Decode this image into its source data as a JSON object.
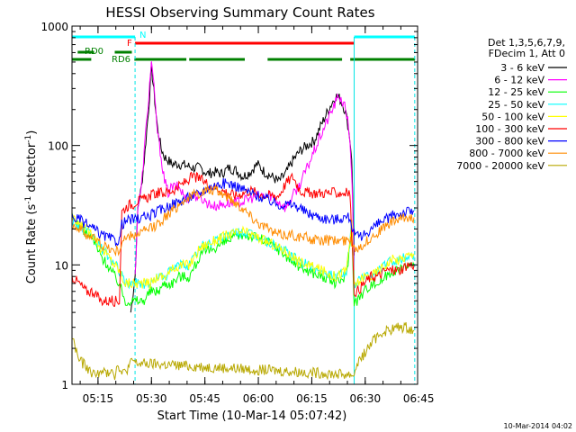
{
  "chart_data": {
    "type": "line",
    "title": "HESSI Observing Summary Count Rates",
    "xlabel": "Start Time (10-Mar-14 05:07:42)",
    "ylabel_main": "Count Rate (s",
    "ylabel_sup1": "-1",
    "ylabel_mid": " detector",
    "ylabel_sup2": "-1",
    "ylabel_end": ")",
    "yscale": "log",
    "ylim": [
      1,
      1000
    ],
    "xlim_minutes": [
      0,
      97
    ],
    "x_ticks": [
      {
        "label": "05:15",
        "minute": 7.3
      },
      {
        "label": "05:30",
        "minute": 22.3
      },
      {
        "label": "05:45",
        "minute": 37.3
      },
      {
        "label": "06:00",
        "minute": 52.3
      },
      {
        "label": "06:15",
        "minute": 67.3
      },
      {
        "label": "06:30",
        "minute": 82.3
      },
      {
        "label": "06:45",
        "minute": 97.3
      }
    ],
    "y_ticks": [
      {
        "label": "1",
        "value": 1
      },
      {
        "label": "10",
        "value": 10
      },
      {
        "label": "100",
        "value": 100
      },
      {
        "label": "1000",
        "value": 1000
      }
    ],
    "legend_header": [
      "Det 1,3,5,6,7,9,",
      "FDecim 1, Att 0"
    ],
    "legend_placement": "right",
    "timestamp": "10-Mar-2014 04:02",
    "night_lines_minutes": [
      17.7,
      79.2,
      96.2
    ],
    "flags": [
      {
        "label": "N",
        "color": "#00ffff",
        "segments": [
          [
            0,
            17.7
          ],
          [
            79.2,
            96.2
          ]
        ]
      },
      {
        "label": "F",
        "color": "#ff0000",
        "segments": [
          [
            17.7,
            79.2
          ]
        ]
      },
      {
        "label": "RD0",
        "color": "#008000",
        "segments": [
          [
            1.6,
            6.2
          ],
          [
            12.0,
            16.8
          ]
        ]
      },
      {
        "label": "RD6",
        "color": "#008000",
        "segments": [
          [
            0,
            5.4
          ],
          [
            17.5,
            32.1
          ],
          [
            32.9,
            48.5
          ],
          [
            54.9,
            75.8
          ],
          [
            78.1,
            96.3
          ]
        ]
      }
    ],
    "series": [
      {
        "name": "3 - 6 keV",
        "color": "#000000",
        "x": [
          16.5,
          17.7,
          18.5,
          19.5,
          20.5,
          21.5,
          22.3,
          23,
          24,
          25,
          26,
          27,
          28,
          30,
          32,
          34,
          36,
          38,
          40,
          42,
          44,
          46,
          48,
          50,
          52,
          54,
          56,
          58,
          60,
          62,
          64,
          66,
          68,
          70,
          72,
          74,
          75,
          76,
          76.8,
          77.4,
          77.9,
          78.5,
          79.2
        ],
        "y": [
          4,
          8,
          30,
          45,
          90,
          200,
          450,
          280,
          140,
          95,
          80,
          75,
          70,
          70,
          68,
          65,
          65,
          58,
          60,
          58,
          65,
          62,
          55,
          60,
          70,
          60,
          55,
          50,
          58,
          75,
          90,
          100,
          110,
          150,
          200,
          260,
          250,
          220,
          190,
          150,
          120,
          80,
          12
        ]
      },
      {
        "name": "6 - 12 keV",
        "color": "#ff00ff",
        "x": [
          17.7,
          18.5,
          19.5,
          20.5,
          21.5,
          22.3,
          23,
          24,
          25,
          26,
          27,
          28,
          30,
          32,
          34,
          36,
          38,
          40,
          44,
          48,
          52,
          56,
          60,
          62,
          64,
          66,
          68,
          70,
          72,
          74,
          75,
          76,
          76.8,
          77.4,
          78,
          78.6,
          79.2
        ],
        "y": [
          8,
          30,
          45,
          110,
          250,
          520,
          300,
          130,
          80,
          50,
          40,
          45,
          45,
          36,
          38,
          37,
          33,
          31,
          33,
          34,
          38,
          38,
          30,
          38,
          48,
          65,
          90,
          125,
          170,
          230,
          260,
          230,
          200,
          160,
          110,
          50,
          9
        ]
      },
      {
        "name": "12 - 25 keV",
        "color": "#00ff00",
        "x": [
          0,
          3,
          6,
          8,
          10,
          12,
          13.3,
          14,
          15,
          16,
          17,
          18,
          20,
          22,
          24,
          26,
          28,
          30,
          33,
          36,
          40,
          44,
          48,
          52,
          56,
          60,
          63,
          66,
          70,
          74,
          77,
          78.5,
          79.2,
          80,
          82,
          84,
          86,
          88,
          90,
          92,
          94,
          96
        ],
        "y": [
          25,
          20,
          16,
          12,
          10,
          8,
          7,
          6,
          5,
          5,
          5,
          5,
          5,
          6,
          6,
          7,
          7,
          8,
          8,
          12,
          14,
          16,
          18,
          17,
          15,
          12,
          10,
          9,
          8,
          7,
          8,
          20,
          5,
          5,
          6,
          7,
          7,
          8,
          9,
          9,
          10,
          10
        ]
      },
      {
        "name": "25 - 50 keV",
        "color": "#00ffff",
        "x": [
          0,
          3,
          6,
          8,
          10,
          12,
          13.3,
          14,
          15,
          16,
          17,
          18,
          20,
          22,
          24,
          26,
          28,
          30,
          33,
          36,
          40,
          44,
          48,
          52,
          56,
          60,
          63,
          66,
          70,
          74,
          77,
          78.5,
          79.2,
          80,
          82,
          84,
          86,
          88,
          90,
          92,
          94,
          96
        ],
        "y": [
          24,
          20,
          17,
          14,
          12,
          10,
          9,
          8,
          7,
          7,
          7,
          7,
          7,
          7,
          8,
          8,
          9,
          10,
          10,
          14,
          16,
          18,
          19,
          17,
          15,
          13,
          11,
          10,
          9,
          8,
          9,
          22,
          7,
          7,
          8,
          8,
          9,
          10,
          11,
          11,
          12,
          12
        ]
      },
      {
        "name": "50 - 100 keV",
        "color": "#ffff00",
        "x": [
          0,
          3,
          6,
          8,
          10,
          12,
          13.3,
          14,
          15,
          16,
          17,
          18,
          20,
          22,
          24,
          26,
          28,
          30,
          33,
          36,
          40,
          44,
          48,
          52,
          56,
          60,
          63,
          66,
          70,
          74,
          77,
          78.5,
          79.2,
          80,
          82,
          84,
          86,
          88,
          90,
          92,
          94,
          96
        ],
        "y": [
          24,
          21,
          18,
          14,
          12,
          10,
          9,
          8,
          7,
          7,
          7,
          7,
          7,
          7,
          8,
          8,
          9,
          10,
          10,
          14,
          16,
          18,
          19,
          17,
          15,
          13,
          11,
          10,
          9,
          8,
          9,
          22,
          7,
          7,
          8,
          8,
          9,
          10,
          11,
          11,
          12,
          12
        ]
      },
      {
        "name": "100 - 300 keV",
        "color": "#ff0000",
        "x": [
          0,
          2,
          4,
          6,
          8,
          10,
          12,
          13.3,
          14,
          15,
          16,
          17,
          18,
          20,
          22,
          24,
          26,
          28,
          30,
          32,
          34,
          36,
          38,
          40,
          42,
          44,
          46,
          48,
          50,
          52,
          54,
          56,
          58,
          60,
          62,
          64,
          66,
          68,
          70,
          72,
          74,
          76,
          78,
          79.2,
          80,
          82,
          84,
          86,
          88,
          90,
          92,
          94,
          96
        ],
        "y": [
          8,
          7,
          6,
          6,
          5,
          5,
          5,
          5,
          28,
          30,
          32,
          32,
          34,
          35,
          38,
          40,
          40,
          42,
          45,
          50,
          55,
          52,
          48,
          45,
          42,
          40,
          38,
          40,
          42,
          40,
          38,
          38,
          38,
          48,
          55,
          42,
          40,
          40,
          40,
          40,
          40,
          40,
          40,
          6,
          6,
          7,
          8,
          8,
          9,
          9,
          9,
          10,
          10
        ]
      },
      {
        "name": "300 - 800 keV",
        "color": "#0000ff",
        "x": [
          0,
          2,
          4,
          6,
          8,
          10,
          12,
          13.3,
          14,
          16,
          18,
          20,
          22,
          24,
          26,
          28,
          30,
          32,
          34,
          36,
          38,
          40,
          42,
          44,
          46,
          48,
          50,
          52,
          54,
          56,
          58,
          60,
          62,
          64,
          66,
          68,
          70,
          72,
          74,
          76,
          78,
          79.2,
          80,
          82,
          84,
          86,
          88,
          90,
          92,
          94,
          96
        ],
        "y": [
          25,
          24,
          22,
          20,
          18,
          17,
          16,
          16,
          22,
          24,
          24,
          25,
          26,
          28,
          30,
          32,
          34,
          36,
          38,
          40,
          44,
          46,
          48,
          48,
          46,
          43,
          40,
          38,
          36,
          34,
          32,
          32,
          32,
          30,
          27,
          26,
          25,
          24,
          24,
          25,
          25,
          18,
          17,
          18,
          20,
          22,
          24,
          26,
          27,
          28,
          28
        ]
      },
      {
        "name": "800 - 7000 keV",
        "color": "#ff8c00",
        "x": [
          0,
          2,
          4,
          6,
          8,
          10,
          12,
          13.3,
          14,
          16,
          18,
          20,
          22,
          24,
          26,
          28,
          30,
          32,
          34,
          36,
          38,
          40,
          42,
          44,
          46,
          48,
          50,
          52,
          54,
          56,
          58,
          60,
          62,
          64,
          66,
          68,
          70,
          72,
          74,
          76,
          78,
          79.2,
          80,
          82,
          84,
          86,
          88,
          90,
          92,
          94,
          96
        ],
        "y": [
          22,
          20,
          18,
          17,
          15,
          14,
          13,
          13,
          16,
          17,
          18,
          19,
          20,
          22,
          25,
          28,
          32,
          36,
          38,
          40,
          42,
          42,
          40,
          37,
          33,
          30,
          26,
          23,
          21,
          19,
          18,
          18,
          18,
          17,
          17,
          16,
          16,
          16,
          16,
          16,
          16,
          14,
          14,
          15,
          17,
          19,
          21,
          23,
          24,
          25,
          25
        ]
      },
      {
        "name": "7000 - 20000 keV",
        "color": "#b8a800",
        "x": [
          0,
          1,
          2,
          3,
          4,
          5,
          6,
          7,
          8,
          9,
          10,
          11,
          12,
          13,
          14,
          15,
          16,
          17,
          18,
          79.2,
          80,
          82,
          84,
          86,
          88,
          90,
          92,
          94,
          96
        ],
        "y": [
          2.5,
          2,
          1.6,
          1.5,
          1.4,
          1.3,
          1.2,
          1.3,
          1.2,
          1.3,
          1.2,
          1.4,
          1.2,
          1.5,
          1.2,
          1.3,
          1.4,
          1.6,
          1.5,
          1.2,
          1.5,
          1.8,
          2.2,
          2.6,
          2.8,
          2.9,
          3,
          3,
          2.8
        ]
      }
    ]
  }
}
